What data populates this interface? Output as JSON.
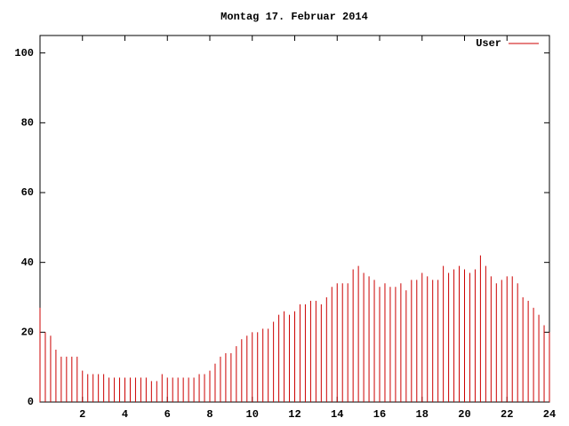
{
  "chart_data": {
    "type": "impulses",
    "title": "Montag 17. Februar 2014",
    "x": [
      0,
      0.25,
      0.5,
      0.75,
      1,
      1.25,
      1.5,
      1.75,
      2,
      2.25,
      2.5,
      2.75,
      3,
      3.25,
      3.5,
      3.75,
      4,
      4.25,
      4.5,
      4.75,
      5,
      5.25,
      5.5,
      5.75,
      6,
      6.25,
      6.5,
      6.75,
      7,
      7.25,
      7.5,
      7.75,
      8,
      8.25,
      8.5,
      8.75,
      9,
      9.25,
      9.5,
      9.75,
      10,
      10.25,
      10.5,
      10.75,
      11,
      11.25,
      11.5,
      11.75,
      12,
      12.25,
      12.5,
      12.75,
      13,
      13.25,
      13.5,
      13.75,
      14,
      14.25,
      14.5,
      14.75,
      15,
      15.25,
      15.5,
      15.75,
      16,
      16.25,
      16.5,
      16.75,
      17,
      17.25,
      17.5,
      17.75,
      18,
      18.25,
      18.5,
      18.75,
      19,
      19.25,
      19.5,
      19.75,
      20,
      20.25,
      20.5,
      20.75,
      21,
      21.25,
      21.5,
      21.75,
      22,
      22.25,
      22.5,
      22.75,
      23,
      23.25,
      23.5,
      23.75,
      24
    ],
    "series": [
      {
        "name": "User",
        "color": "#cc0000",
        "values": [
          27,
          20,
          19,
          15,
          13,
          13,
          13,
          13,
          9,
          8,
          8,
          8,
          8,
          7,
          7,
          7,
          7,
          7,
          7,
          7,
          7,
          6,
          6,
          8,
          7,
          7,
          7,
          7,
          7,
          7,
          8,
          8,
          9,
          11,
          13,
          14,
          14,
          16,
          18,
          19,
          20,
          20,
          21,
          21,
          23,
          25,
          26,
          25,
          26,
          28,
          28,
          29,
          29,
          28,
          30,
          33,
          34,
          34,
          34,
          38,
          39,
          37,
          36,
          35,
          33,
          34,
          33,
          33,
          34,
          32,
          35,
          35,
          37,
          36,
          35,
          35,
          39,
          37,
          38,
          39,
          38,
          37,
          38,
          42,
          39,
          36,
          34,
          35,
          36,
          36,
          34,
          30,
          29,
          27,
          25,
          22,
          20
        ]
      }
    ],
    "xlim": [
      0,
      24
    ],
    "xticks": [
      2,
      4,
      6,
      8,
      10,
      12,
      14,
      16,
      18,
      20,
      22,
      24
    ],
    "ylim": [
      0,
      105
    ],
    "yticks": [
      0,
      20,
      40,
      60,
      80,
      100
    ],
    "legend": "upper right"
  }
}
